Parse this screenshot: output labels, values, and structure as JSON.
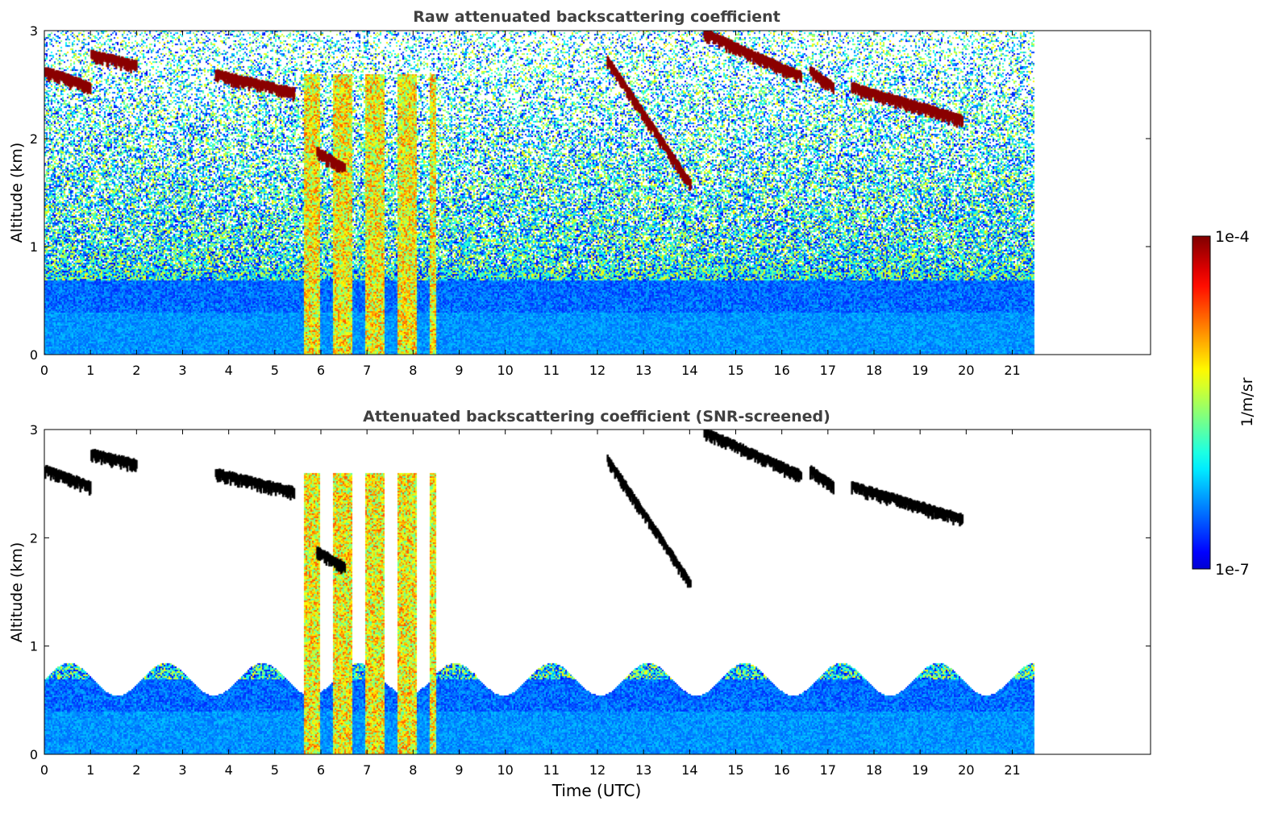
{
  "chart_data": [
    {
      "type": "heatmap",
      "title": "Raw attenuated backscattering coefficient",
      "xlabel": "",
      "ylabel": "Altitude (km)",
      "xlim": [
        0,
        24
      ],
      "ylim": [
        0,
        3
      ],
      "data_extent_x": [
        0,
        21.45
      ],
      "x_ticks": [
        "0",
        "1",
        "2",
        "3",
        "4",
        "5",
        "6",
        "7",
        "8",
        "9",
        "10",
        "11",
        "12",
        "13",
        "14",
        "15",
        "16",
        "17",
        "18",
        "19",
        "20",
        "21"
      ],
      "y_ticks": [
        "0",
        "1",
        "2",
        "3"
      ],
      "screened": false,
      "grid": false
    },
    {
      "type": "heatmap",
      "title": "Attenuated backscattering coefficient (SNR-screened)",
      "xlabel": "Time (UTC)",
      "ylabel": "Altitude (km)",
      "xlim": [
        0,
        24
      ],
      "ylim": [
        0,
        3
      ],
      "data_extent_x": [
        0,
        21.45
      ],
      "x_ticks": [
        "0",
        "1",
        "2",
        "3",
        "4",
        "5",
        "6",
        "7",
        "8",
        "9",
        "10",
        "11",
        "12",
        "13",
        "14",
        "15",
        "16",
        "17",
        "18",
        "19",
        "20",
        "21"
      ],
      "y_ticks": [
        "0",
        "1",
        "2",
        "3"
      ],
      "screened": true,
      "grid": false
    }
  ],
  "colorbar": {
    "label": "1/m/sr",
    "max_label": "1e-4",
    "min_label": "1e-7",
    "colormap": "jet",
    "scale": "log"
  },
  "features": {
    "boundary_layer_top_km": 0.7,
    "aerosol_plume_hours": [
      5.6,
      8.5
    ],
    "cloud_layers": [
      {
        "x": [
          0.0,
          1.0
        ],
        "alt_km": [
          2.5,
          2.65
        ]
      },
      {
        "x": [
          1.0,
          2.0
        ],
        "alt_km": [
          2.7,
          2.8
        ]
      },
      {
        "x": [
          3.7,
          5.4
        ],
        "alt_km": [
          2.45,
          2.62
        ]
      },
      {
        "x": [
          5.9,
          6.5
        ],
        "alt_km": [
          1.75,
          1.9
        ]
      },
      {
        "x": [
          12.2,
          14.0
        ],
        "alt_km": [
          1.6,
          2.75
        ]
      },
      {
        "x": [
          14.3,
          16.4
        ],
        "alt_km": [
          2.6,
          3.0
        ]
      },
      {
        "x": [
          16.6,
          17.1
        ],
        "alt_km": [
          2.5,
          2.65
        ]
      },
      {
        "x": [
          17.5,
          19.9
        ],
        "alt_km": [
          2.2,
          2.5
        ]
      }
    ]
  }
}
